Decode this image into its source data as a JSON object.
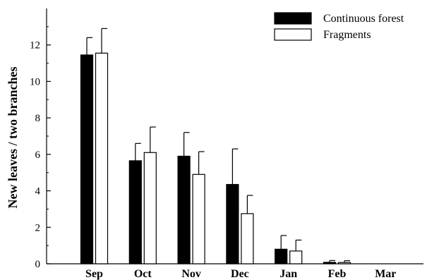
{
  "chart_data": {
    "type": "bar",
    "title": "",
    "xlabel": "",
    "ylabel": "New leaves / two branches",
    "ylim": [
      0,
      14
    ],
    "yticks": [
      "0",
      "2",
      "4",
      "6",
      "8",
      "10",
      "12"
    ],
    "categories": [
      "Sep",
      "Oct",
      "Nov",
      "Dec",
      "Jan",
      "Feb",
      "Mar"
    ],
    "series": [
      {
        "name": "Continuous forest",
        "color": "#000000",
        "values": [
          11.45,
          5.65,
          5.9,
          4.35,
          0.8,
          0.08,
          0
        ],
        "errors": [
          0.95,
          0.95,
          1.3,
          1.95,
          0.75,
          0.1,
          0
        ]
      },
      {
        "name": "Fragments",
        "color": "#ffffff",
        "values": [
          11.55,
          6.1,
          4.9,
          2.75,
          0.7,
          0.07,
          0
        ],
        "errors": [
          1.35,
          1.4,
          1.25,
          1.0,
          0.6,
          0.1,
          0
        ]
      }
    ],
    "legend_position": "top-right",
    "grid": false
  }
}
